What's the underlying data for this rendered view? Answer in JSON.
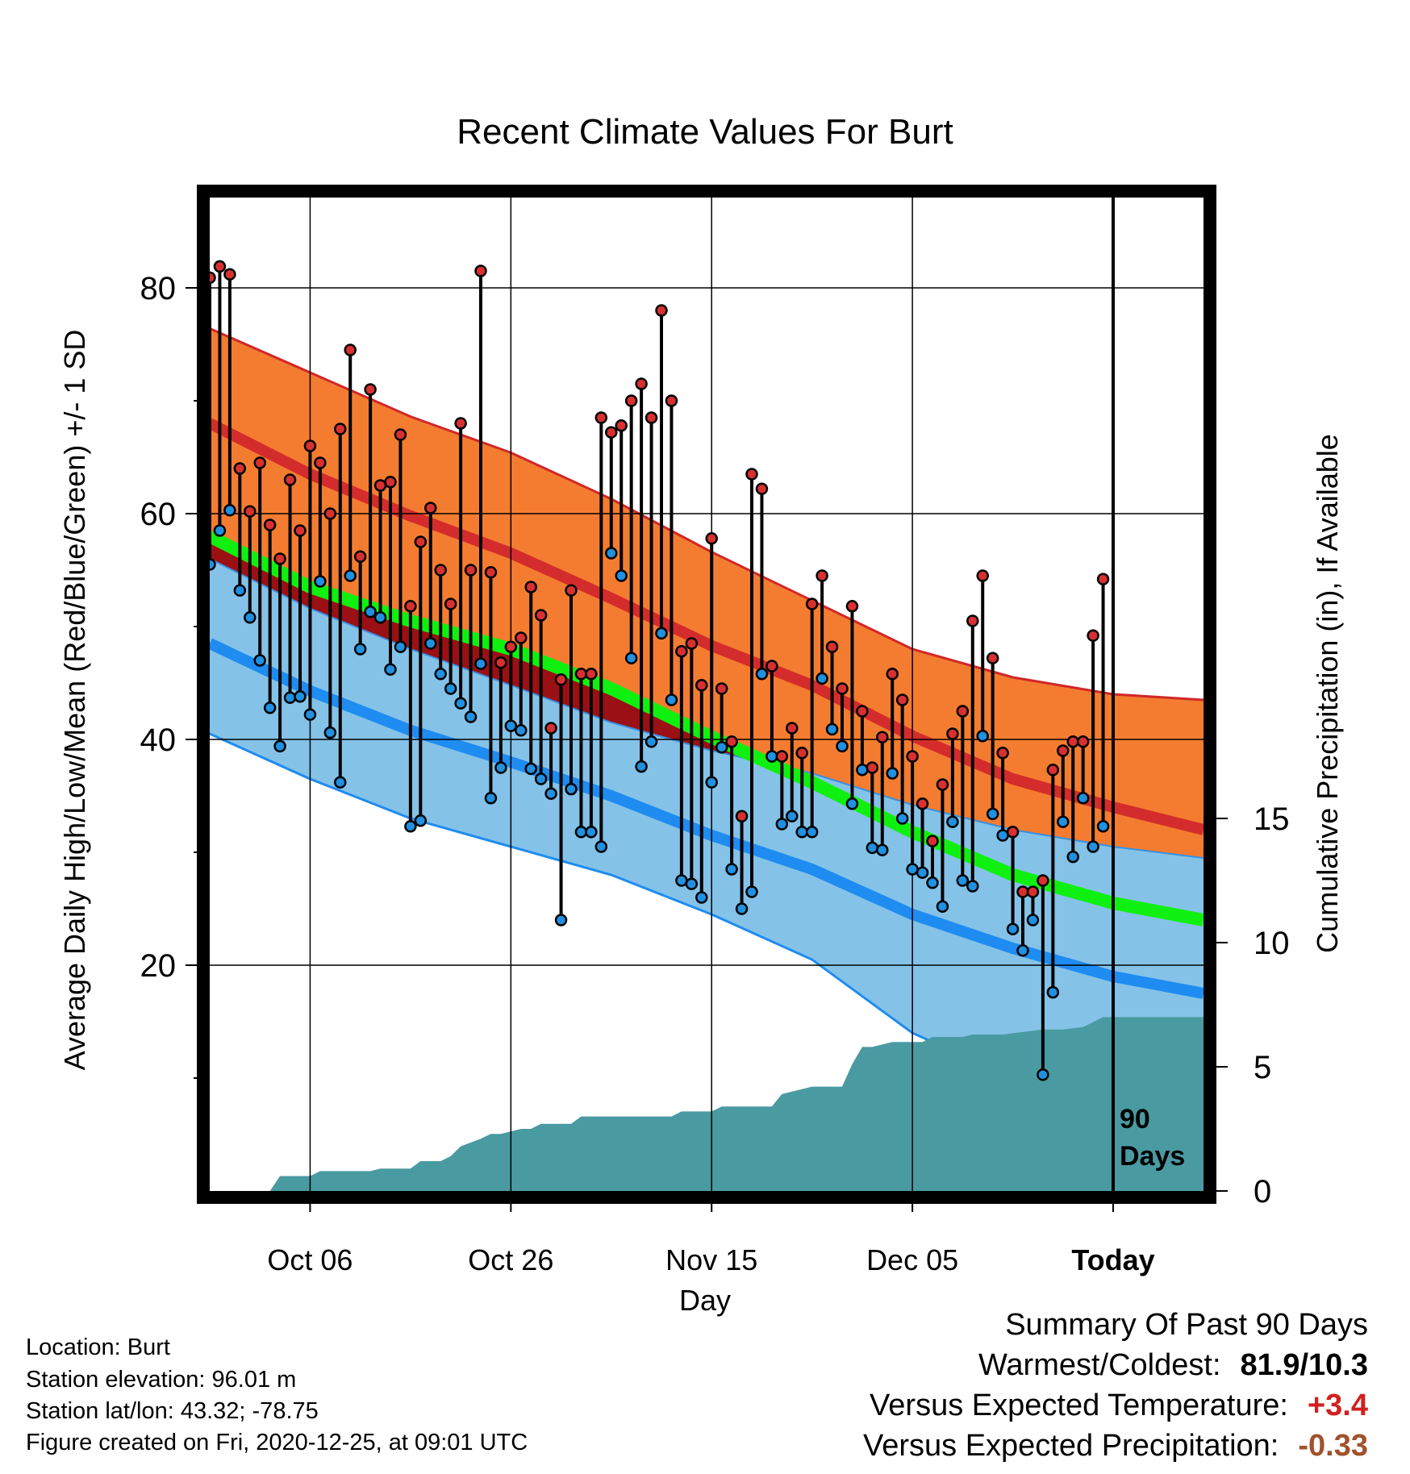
{
  "chart_data": {
    "type": "line",
    "title": "Recent Climate Values For Burt",
    "xlabel": "Day",
    "ylabel_left": "Average Daily High/Low/Mean (Red/Blue/Green) +/- 1 SD",
    "ylabel_right": "Cumulative Precipitation (in), If Available",
    "x_tick_labels": [
      "Oct 06",
      "Oct 26",
      "Nov 15",
      "Dec 05",
      "Today"
    ],
    "x_tick_days": [
      -80,
      -60,
      -40,
      -20,
      0
    ],
    "xlim_days": [
      -90,
      9
    ],
    "ylim_left": [
      0,
      88
    ],
    "left_ticks": [
      20,
      40,
      60,
      80
    ],
    "ylim_right": [
      0,
      40
    ],
    "right_ticks": [
      0,
      5,
      10,
      15
    ],
    "today_marker": "90\nDays",
    "grid": true,
    "colors": {
      "high_band": "#f47c30",
      "normal_high": "#d42c2c",
      "low_band": "#85c2e8",
      "normal_low": "#1e8cf0",
      "mean": "#10f010",
      "above_mean_fill": "#9a1014",
      "precip": "#4a9aa2",
      "high_point": "#d83030",
      "low_point": "#2090e0"
    },
    "normals_days": [
      -90,
      -80,
      -70,
      -60,
      -50,
      -40,
      -30,
      -20,
      -10,
      0,
      9
    ],
    "normal_high": [
      68,
      63.5,
      59.8,
      56.5,
      52.5,
      48.3,
      44.8,
      40.3,
      36.5,
      34,
      32
    ],
    "normal_high_sd_upper": [
      76.4,
      72.5,
      68.6,
      65.4,
      61.3,
      56.6,
      52.3,
      48,
      45.5,
      44,
      43.5
    ],
    "normal_mean": [
      58,
      53.5,
      50.5,
      48,
      44.5,
      40.2,
      36.2,
      31.8,
      28,
      25.5,
      24
    ],
    "normal_low_sd_upper": [
      56,
      51.6,
      48,
      44.8,
      41.5,
      39,
      37,
      34.2,
      32,
      30.5,
      29.5
    ],
    "normal_low": [
      48.5,
      44.3,
      40.8,
      38,
      35,
      31.5,
      28.5,
      24.5,
      21.5,
      19,
      17.5
    ],
    "normal_low_sd_lower": [
      40.5,
      36.5,
      33,
      30.5,
      28,
      24.5,
      20.5,
      14,
      10,
      7,
      5
    ],
    "daily_days": [
      -90,
      -89,
      -88,
      -87,
      -86,
      -85,
      -84,
      -83,
      -82,
      -81,
      -80,
      -79,
      -78,
      -77,
      -76,
      -75,
      -74,
      -73,
      -72,
      -71,
      -70,
      -69,
      -68,
      -67,
      -66,
      -65,
      -64,
      -63,
      -62,
      -61,
      -60,
      -59,
      -58,
      -57,
      -56,
      -55,
      -54,
      -53,
      -52,
      -51,
      -50,
      -49,
      -48,
      -47,
      -46,
      -45,
      -44,
      -43,
      -42,
      -41,
      -40,
      -39,
      -38,
      -37,
      -36,
      -35,
      -34,
      -33,
      -32,
      -31,
      -30,
      -29,
      -28,
      -27,
      -26,
      -25,
      -24,
      -23,
      -22,
      -21,
      -20,
      -19,
      -18,
      -17,
      -16,
      -15,
      -14,
      -13,
      -12,
      -11,
      -10,
      -9,
      -8,
      -7,
      -6,
      -5,
      -4,
      -3,
      -2,
      -1
    ],
    "daily_high": [
      80.9,
      81.9,
      81.2,
      64,
      60.2,
      64.5,
      59,
      56,
      63,
      58.5,
      66,
      64.5,
      60,
      67.5,
      74.5,
      56.2,
      71,
      62.5,
      62.8,
      67,
      51.8,
      57.5,
      60.5,
      55,
      52,
      68,
      55,
      81.5,
      54.8,
      46.8,
      48.2,
      49,
      53.5,
      51,
      41,
      45.3,
      53.2,
      45.8,
      45.8,
      68.5,
      67.2,
      67.8,
      70,
      71.5,
      68.5,
      78,
      70,
      47.8,
      48.5,
      44.8,
      57.8,
      44.5,
      39.8,
      33.2,
      63.5,
      62.2,
      46.5,
      38.5,
      41,
      38.8,
      52,
      54.5,
      48.2,
      44.5,
      51.8,
      42.5,
      37.5,
      40.2,
      45.8,
      43.5,
      38.5,
      34.3,
      31,
      36,
      40.5,
      42.5,
      50.5,
      54.5,
      47.2,
      38.8,
      31.8,
      26.5,
      26.5,
      27.5,
      37.3,
      39,
      39.8,
      39.8,
      49.2,
      54.2
    ],
    "daily_low": [
      55.5,
      58.5,
      60.3,
      53.2,
      50.8,
      47,
      42.8,
      39.4,
      43.7,
      43.8,
      42.2,
      54,
      40.6,
      36.2,
      54.5,
      48,
      51.3,
      50.8,
      46.2,
      48.2,
      32.3,
      32.8,
      48.5,
      45.8,
      44.5,
      43.2,
      42,
      46.7,
      34.8,
      37.5,
      41.2,
      40.8,
      37.4,
      36.5,
      35.2,
      24,
      35.6,
      31.8,
      31.8,
      30.5,
      56.5,
      54.5,
      47.2,
      37.6,
      39.8,
      49.4,
      43.5,
      27.5,
      27.2,
      26,
      36.2,
      39.3,
      28.5,
      25,
      26.5,
      45.8,
      38.5,
      32.5,
      33.2,
      31.8,
      31.8,
      45.4,
      40.9,
      39.4,
      34.3,
      37.3,
      30.4,
      30.2,
      37,
      33,
      28.5,
      28.2,
      27.3,
      25.2,
      32.7,
      27.5,
      27,
      40.3,
      33.4,
      31.5,
      23.2,
      21.3,
      24,
      10.3,
      17.6,
      32.7,
      29.6,
      34.8,
      30.5,
      32.3
    ],
    "precip_days": [
      -90,
      -84,
      -83,
      -80,
      -79,
      -74,
      -73,
      -70,
      -69,
      -67,
      -66,
      -65,
      -63,
      -62,
      -61,
      -59,
      -58,
      -57,
      -54,
      -53,
      -44,
      -43,
      -40,
      -39,
      -34,
      -33,
      -32,
      -30,
      -27,
      -26,
      -25,
      -24,
      -22,
      -19,
      -18,
      -15,
      -14,
      -11,
      -7,
      -6,
      -5,
      -3,
      -1,
      0,
      9
    ],
    "precip_cum": [
      0,
      0,
      0.6,
      0.6,
      0.8,
      0.8,
      0.9,
      0.9,
      1.2,
      1.2,
      1.4,
      1.8,
      2.1,
      2.3,
      2.3,
      2.5,
      2.5,
      2.7,
      2.7,
      3.0,
      3.0,
      3.2,
      3.2,
      3.4,
      3.4,
      3.9,
      4.0,
      4.2,
      4.2,
      5.1,
      5.8,
      5.8,
      6.0,
      6.0,
      6.2,
      6.2,
      6.3,
      6.3,
      6.5,
      6.5,
      6.5,
      6.6,
      7.0,
      7.0,
      7.0
    ],
    "series": [
      {
        "name": "High",
        "values_key": "daily_high"
      },
      {
        "name": "Low",
        "values_key": "daily_low"
      },
      {
        "name": "Mean",
        "values_key": "normal_mean"
      }
    ]
  },
  "footer": {
    "location": "Location: Burt",
    "elevation": "Station elevation: 96.01 m",
    "latlon": "Station lat/lon: 43.32; -78.75",
    "created": "Figure created on Fri, 2020-12-25, at 09:01 UTC"
  },
  "summary": {
    "title": "Summary Of Past 90 Days",
    "warmest_coldest_label": "Warmest/Coldest:",
    "warmest_coldest_value": "81.9/10.3",
    "temp_label": "Versus Expected Temperature:",
    "temp_value": "+3.4",
    "temp_color": "#d02020",
    "precip_label": "Versus Expected Precipitation:",
    "precip_value": "-0.33",
    "precip_color": "#a0522d"
  }
}
